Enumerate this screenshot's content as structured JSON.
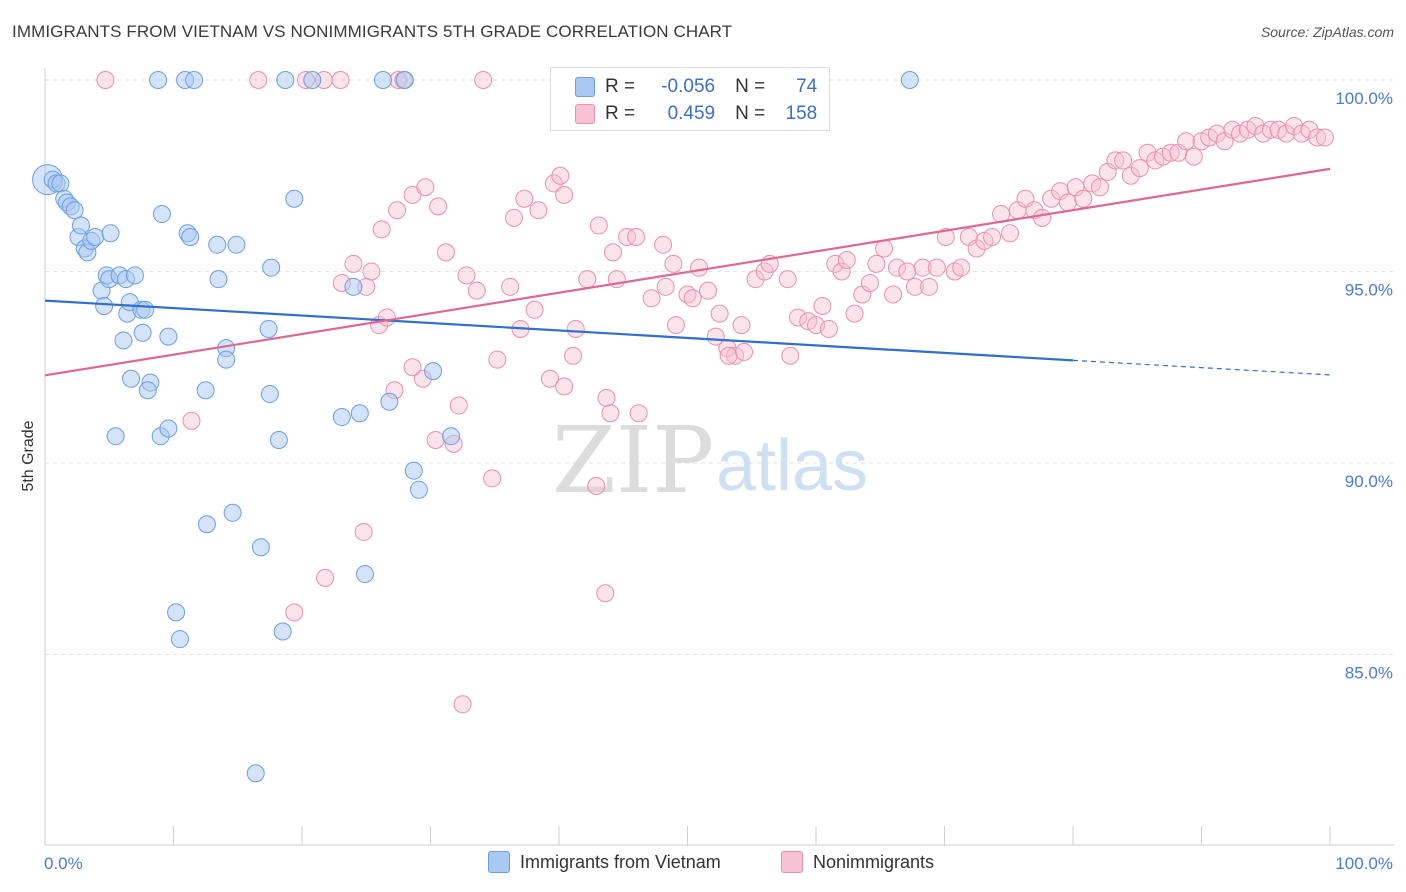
{
  "title": "IMMIGRANTS FROM VIETNAM VS NONIMMIGRANTS 5TH GRADE CORRELATION CHART",
  "source": "Source: ZipAtlas.com",
  "watermark": {
    "zip": "ZIP",
    "atlas": "atlas"
  },
  "colors": {
    "blue_fill": "#a9c8f2",
    "blue_stroke": "#6a9fe0",
    "blue_line": "#2f6fce",
    "pink_fill": "#f7c2d3",
    "pink_stroke": "#ea8fb0",
    "pink_line": "#e0678f",
    "axis_text": "#4a7bd0"
  },
  "legend": {
    "series1": {
      "r_label": "R =",
      "r_value": "-0.056",
      "n_label": "N =",
      "n_value": "74"
    },
    "series2": {
      "r_label": "R =",
      "r_value": "0.459",
      "n_label": "N =",
      "n_value": "158"
    }
  },
  "chart_data": {
    "type": "scatter",
    "title": "IMMIGRANTS FROM VIETNAM VS NONIMMIGRANTS 5TH GRADE CORRELATION CHART",
    "xlabel": "",
    "ylabel": "5th Grade",
    "xlim": [
      0,
      100
    ],
    "ylim": [
      80.5,
      101.0
    ],
    "x_tick_labels": [
      "0.0%",
      "100.0%"
    ],
    "y_ticks": [
      85,
      90,
      95,
      100
    ],
    "y_tick_labels": [
      "85.0%",
      "90.0%",
      "95.0%",
      "100.0%"
    ],
    "grid": true,
    "legend_position": "top-center",
    "series": [
      {
        "name": "Immigrants from Vietnam",
        "color": "#a9c8f2",
        "trend": {
          "x": [
            0,
            80
          ],
          "y": [
            94.24,
            92.68
          ],
          "dashed_extension_to_x": 100,
          "dashed_extension_y": 92.3
        },
        "points": [
          {
            "x": 0.2,
            "y": 97.4,
            "big": true
          },
          {
            "x": 0.6,
            "y": 97.4
          },
          {
            "x": 0.9,
            "y": 97.3
          },
          {
            "x": 1.2,
            "y": 97.3
          },
          {
            "x": 1.5,
            "y": 96.9
          },
          {
            "x": 1.7,
            "y": 96.8
          },
          {
            "x": 2.0,
            "y": 96.7
          },
          {
            "x": 2.3,
            "y": 96.6
          },
          {
            "x": 2.6,
            "y": 95.9
          },
          {
            "x": 2.8,
            "y": 96.2
          },
          {
            "x": 3.1,
            "y": 95.6
          },
          {
            "x": 3.3,
            "y": 95.5
          },
          {
            "x": 3.6,
            "y": 95.8
          },
          {
            "x": 3.9,
            "y": 95.9
          },
          {
            "x": 5.1,
            "y": 96.0
          },
          {
            "x": 4.4,
            "y": 94.5
          },
          {
            "x": 4.6,
            "y": 94.1
          },
          {
            "x": 4.8,
            "y": 94.9
          },
          {
            "x": 5.0,
            "y": 94.8
          },
          {
            "x": 5.8,
            "y": 94.9
          },
          {
            "x": 6.3,
            "y": 94.8
          },
          {
            "x": 6.4,
            "y": 93.9
          },
          {
            "x": 6.6,
            "y": 94.2
          },
          {
            "x": 7.0,
            "y": 94.9
          },
          {
            "x": 7.5,
            "y": 94.0
          },
          {
            "x": 7.6,
            "y": 93.4
          },
          {
            "x": 6.1,
            "y": 93.2
          },
          {
            "x": 7.8,
            "y": 94.0
          },
          {
            "x": 9.6,
            "y": 93.3
          },
          {
            "x": 6.7,
            "y": 92.2
          },
          {
            "x": 8.2,
            "y": 92.1
          },
          {
            "x": 8.0,
            "y": 91.9
          },
          {
            "x": 5.5,
            "y": 90.7
          },
          {
            "x": 9.0,
            "y": 90.7
          },
          {
            "x": 9.6,
            "y": 90.9
          },
          {
            "x": 12.5,
            "y": 91.9
          },
          {
            "x": 9.1,
            "y": 96.5
          },
          {
            "x": 11.1,
            "y": 96.0
          },
          {
            "x": 11.3,
            "y": 95.9
          },
          {
            "x": 13.4,
            "y": 95.7
          },
          {
            "x": 14.9,
            "y": 95.7
          },
          {
            "x": 13.5,
            "y": 94.8
          },
          {
            "x": 14.1,
            "y": 93.0
          },
          {
            "x": 14.1,
            "y": 92.7
          },
          {
            "x": 17.4,
            "y": 93.5
          },
          {
            "x": 17.6,
            "y": 95.1
          },
          {
            "x": 19.4,
            "y": 96.9
          },
          {
            "x": 17.5,
            "y": 91.8
          },
          {
            "x": 18.2,
            "y": 90.6
          },
          {
            "x": 14.6,
            "y": 88.7
          },
          {
            "x": 12.6,
            "y": 88.4
          },
          {
            "x": 16.8,
            "y": 87.8
          },
          {
            "x": 10.2,
            "y": 86.1
          },
          {
            "x": 10.5,
            "y": 85.4
          },
          {
            "x": 18.5,
            "y": 85.6
          },
          {
            "x": 16.4,
            "y": 81.9
          },
          {
            "x": 23.1,
            "y": 91.2
          },
          {
            "x": 24.5,
            "y": 91.3
          },
          {
            "x": 26.8,
            "y": 91.6
          },
          {
            "x": 24.9,
            "y": 87.1
          },
          {
            "x": 28.7,
            "y": 89.8
          },
          {
            "x": 29.1,
            "y": 89.3
          },
          {
            "x": 30.2,
            "y": 92.4
          },
          {
            "x": 31.6,
            "y": 90.7
          },
          {
            "x": 24.0,
            "y": 94.6
          },
          {
            "x": 8.8,
            "y": 100.0
          },
          {
            "x": 10.9,
            "y": 100.0
          },
          {
            "x": 11.6,
            "y": 100.0
          },
          {
            "x": 18.7,
            "y": 100.0
          },
          {
            "x": 20.8,
            "y": 100.0
          },
          {
            "x": 26.3,
            "y": 100.0
          },
          {
            "x": 28.0,
            "y": 100.0
          },
          {
            "x": 67.3,
            "y": 100.0
          }
        ]
      },
      {
        "name": "Nonimmigrants",
        "color": "#f7c2d3",
        "trend": {
          "x": [
            0,
            100
          ],
          "y": [
            92.29,
            97.68
          ]
        },
        "points": [
          {
            "x": 4.7,
            "y": 100.0
          },
          {
            "x": 16.6,
            "y": 100.0
          },
          {
            "x": 20.3,
            "y": 100.0
          },
          {
            "x": 21.7,
            "y": 100.0
          },
          {
            "x": 23.0,
            "y": 100.0
          },
          {
            "x": 27.5,
            "y": 100.0
          },
          {
            "x": 27.9,
            "y": 100.0
          },
          {
            "x": 34.1,
            "y": 100.0
          },
          {
            "x": 11.4,
            "y": 91.1
          },
          {
            "x": 23.1,
            "y": 94.7
          },
          {
            "x": 24.0,
            "y": 95.2
          },
          {
            "x": 25.0,
            "y": 94.6
          },
          {
            "x": 25.4,
            "y": 95.0
          },
          {
            "x": 26.0,
            "y": 93.6
          },
          {
            "x": 26.6,
            "y": 93.8
          },
          {
            "x": 26.2,
            "y": 96.1
          },
          {
            "x": 27.4,
            "y": 96.6
          },
          {
            "x": 28.6,
            "y": 97.0
          },
          {
            "x": 29.6,
            "y": 97.2
          },
          {
            "x": 30.6,
            "y": 96.7
          },
          {
            "x": 31.2,
            "y": 95.5
          },
          {
            "x": 32.8,
            "y": 94.9
          },
          {
            "x": 33.6,
            "y": 94.5
          },
          {
            "x": 29.4,
            "y": 92.2
          },
          {
            "x": 30.4,
            "y": 90.6
          },
          {
            "x": 35.2,
            "y": 92.7
          },
          {
            "x": 34.8,
            "y": 89.6
          },
          {
            "x": 36.5,
            "y": 96.4
          },
          {
            "x": 37.3,
            "y": 96.9
          },
          {
            "x": 36.2,
            "y": 94.6
          },
          {
            "x": 38.1,
            "y": 94.0
          },
          {
            "x": 38.4,
            "y": 96.6
          },
          {
            "x": 39.6,
            "y": 97.3
          },
          {
            "x": 40.1,
            "y": 97.5
          },
          {
            "x": 40.4,
            "y": 97.0
          },
          {
            "x": 39.3,
            "y": 92.2
          },
          {
            "x": 40.4,
            "y": 92.0
          },
          {
            "x": 41.1,
            "y": 92.8
          },
          {
            "x": 41.3,
            "y": 93.5
          },
          {
            "x": 42.2,
            "y": 94.8
          },
          {
            "x": 43.1,
            "y": 96.2
          },
          {
            "x": 44.2,
            "y": 95.5
          },
          {
            "x": 43.7,
            "y": 91.7
          },
          {
            "x": 44.0,
            "y": 91.3
          },
          {
            "x": 42.9,
            "y": 89.4
          },
          {
            "x": 43.6,
            "y": 86.6
          },
          {
            "x": 44.5,
            "y": 94.8
          },
          {
            "x": 45.3,
            "y": 95.9
          },
          {
            "x": 46.0,
            "y": 95.9
          },
          {
            "x": 47.2,
            "y": 94.3
          },
          {
            "x": 46.2,
            "y": 91.3
          },
          {
            "x": 48.1,
            "y": 95.7
          },
          {
            "x": 48.3,
            "y": 94.6
          },
          {
            "x": 48.9,
            "y": 95.2
          },
          {
            "x": 50.0,
            "y": 94.4
          },
          {
            "x": 50.4,
            "y": 94.3
          },
          {
            "x": 49.1,
            "y": 93.6
          },
          {
            "x": 50.9,
            "y": 95.1
          },
          {
            "x": 51.6,
            "y": 94.5
          },
          {
            "x": 52.2,
            "y": 93.3
          },
          {
            "x": 53.1,
            "y": 93.0
          },
          {
            "x": 53.7,
            "y": 92.8
          },
          {
            "x": 54.2,
            "y": 93.6
          },
          {
            "x": 53.2,
            "y": 92.8
          },
          {
            "x": 54.4,
            "y": 92.9
          },
          {
            "x": 52.5,
            "y": 93.9
          },
          {
            "x": 55.3,
            "y": 94.8
          },
          {
            "x": 56.0,
            "y": 95.0
          },
          {
            "x": 56.4,
            "y": 95.2
          },
          {
            "x": 57.8,
            "y": 94.8
          },
          {
            "x": 58.0,
            "y": 92.8
          },
          {
            "x": 58.6,
            "y": 93.8
          },
          {
            "x": 59.4,
            "y": 93.7
          },
          {
            "x": 60.0,
            "y": 93.6
          },
          {
            "x": 60.5,
            "y": 94.1
          },
          {
            "x": 61.0,
            "y": 93.5
          },
          {
            "x": 61.5,
            "y": 95.2
          },
          {
            "x": 62.0,
            "y": 95.0
          },
          {
            "x": 62.4,
            "y": 95.3
          },
          {
            "x": 63.0,
            "y": 93.9
          },
          {
            "x": 63.6,
            "y": 94.4
          },
          {
            "x": 64.2,
            "y": 94.7
          },
          {
            "x": 64.7,
            "y": 95.2
          },
          {
            "x": 65.3,
            "y": 95.6
          },
          {
            "x": 66.0,
            "y": 94.4
          },
          {
            "x": 66.3,
            "y": 95.1
          },
          {
            "x": 67.1,
            "y": 95.0
          },
          {
            "x": 67.7,
            "y": 94.6
          },
          {
            "x": 68.3,
            "y": 95.1
          },
          {
            "x": 68.8,
            "y": 94.6
          },
          {
            "x": 69.4,
            "y": 95.1
          },
          {
            "x": 70.1,
            "y": 95.9
          },
          {
            "x": 70.8,
            "y": 95.0
          },
          {
            "x": 71.3,
            "y": 95.1
          },
          {
            "x": 71.9,
            "y": 95.9
          },
          {
            "x": 72.5,
            "y": 95.6
          },
          {
            "x": 73.1,
            "y": 95.8
          },
          {
            "x": 73.7,
            "y": 95.9
          },
          {
            "x": 74.4,
            "y": 96.5
          },
          {
            "x": 75.1,
            "y": 96.0
          },
          {
            "x": 75.7,
            "y": 96.6
          },
          {
            "x": 76.3,
            "y": 96.9
          },
          {
            "x": 77.0,
            "y": 96.6
          },
          {
            "x": 77.6,
            "y": 96.4
          },
          {
            "x": 78.3,
            "y": 96.9
          },
          {
            "x": 79.0,
            "y": 97.1
          },
          {
            "x": 79.6,
            "y": 96.8
          },
          {
            "x": 80.2,
            "y": 97.2
          },
          {
            "x": 80.8,
            "y": 96.9
          },
          {
            "x": 81.5,
            "y": 97.3
          },
          {
            "x": 82.1,
            "y": 97.2
          },
          {
            "x": 82.7,
            "y": 97.6
          },
          {
            "x": 83.3,
            "y": 97.9
          },
          {
            "x": 83.9,
            "y": 97.9
          },
          {
            "x": 84.5,
            "y": 97.5
          },
          {
            "x": 85.2,
            "y": 97.7
          },
          {
            "x": 85.8,
            "y": 98.1
          },
          {
            "x": 86.4,
            "y": 97.9
          },
          {
            "x": 87.0,
            "y": 98.0
          },
          {
            "x": 87.6,
            "y": 98.1
          },
          {
            "x": 88.2,
            "y": 98.1
          },
          {
            "x": 88.8,
            "y": 98.4
          },
          {
            "x": 89.4,
            "y": 98.0
          },
          {
            "x": 90.0,
            "y": 98.4
          },
          {
            "x": 90.6,
            "y": 98.5
          },
          {
            "x": 91.2,
            "y": 98.6
          },
          {
            "x": 91.8,
            "y": 98.4
          },
          {
            "x": 92.4,
            "y": 98.7
          },
          {
            "x": 93.0,
            "y": 98.6
          },
          {
            "x": 93.6,
            "y": 98.7
          },
          {
            "x": 94.2,
            "y": 98.8
          },
          {
            "x": 94.8,
            "y": 98.6
          },
          {
            "x": 95.4,
            "y": 98.7
          },
          {
            "x": 96.0,
            "y": 98.7
          },
          {
            "x": 96.6,
            "y": 98.6
          },
          {
            "x": 97.2,
            "y": 98.8
          },
          {
            "x": 97.8,
            "y": 98.6
          },
          {
            "x": 98.4,
            "y": 98.7
          },
          {
            "x": 99.0,
            "y": 98.5
          },
          {
            "x": 99.6,
            "y": 98.5
          },
          {
            "x": 28.6,
            "y": 92.5
          },
          {
            "x": 32.2,
            "y": 91.5
          },
          {
            "x": 27.2,
            "y": 91.9
          },
          {
            "x": 24.8,
            "y": 88.2
          },
          {
            "x": 21.8,
            "y": 87.0
          },
          {
            "x": 19.4,
            "y": 86.1
          },
          {
            "x": 32.5,
            "y": 83.7
          },
          {
            "x": 31.8,
            "y": 90.5
          },
          {
            "x": 37.0,
            "y": 93.5
          }
        ]
      }
    ]
  },
  "bottom_legend": {
    "item1": "Immigrants from Vietnam",
    "item2": "Nonimmigrants"
  }
}
